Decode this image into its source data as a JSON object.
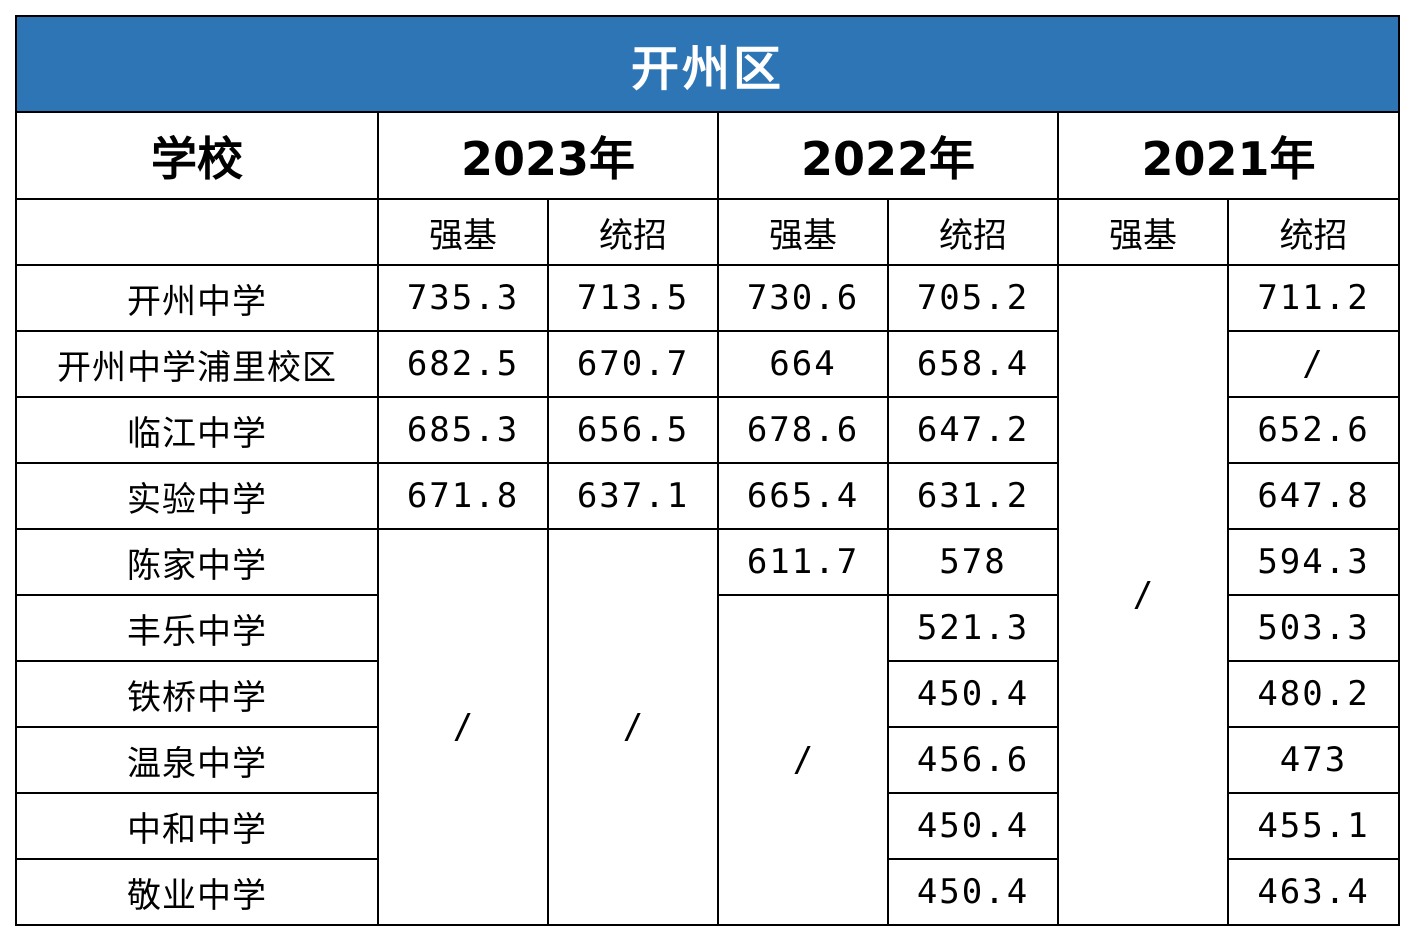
{
  "title": "开州区",
  "header": {
    "school_label": "学校",
    "years": [
      "2023年",
      "2022年",
      "2021年"
    ],
    "sub_labels": [
      "强基",
      "统招"
    ]
  },
  "rows": [
    {
      "school": "开州中学",
      "y2023_qj": "735.3",
      "y2023_tz": "713.5",
      "y2022_qj": "730.6",
      "y2022_tz": "705.2",
      "y2021_tz": "711.2"
    },
    {
      "school": "开州中学浦里校区",
      "y2023_qj": "682.5",
      "y2023_tz": "670.7",
      "y2022_qj": "664",
      "y2022_tz": "658.4",
      "y2021_tz": "/"
    },
    {
      "school": "临江中学",
      "y2023_qj": "685.3",
      "y2023_tz": "656.5",
      "y2022_qj": "678.6",
      "y2022_tz": "647.2",
      "y2021_tz": "652.6"
    },
    {
      "school": "实验中学",
      "y2023_qj": "671.8",
      "y2023_tz": "637.1",
      "y2022_qj": "665.4",
      "y2022_tz": "631.2",
      "y2021_tz": "647.8"
    },
    {
      "school": "陈家中学",
      "y2022_qj": "611.7",
      "y2022_tz": "578",
      "y2021_tz": "594.3"
    },
    {
      "school": "丰乐中学",
      "y2022_tz": "521.3",
      "y2021_tz": "503.3"
    },
    {
      "school": "铁桥中学",
      "y2022_tz": "450.4",
      "y2021_tz": "480.2"
    },
    {
      "school": "温泉中学",
      "y2022_tz": "456.6",
      "y2021_tz": "473"
    },
    {
      "school": "中和中学",
      "y2022_tz": "450.4",
      "y2021_tz": "455.1"
    },
    {
      "school": "敬业中学",
      "y2022_tz": "450.4",
      "y2021_tz": "463.4"
    }
  ],
  "merged": {
    "y2023_qj_missing": "/",
    "y2023_tz_missing": "/",
    "y2022_qj_missing": "/",
    "y2021_qj_all": "/"
  },
  "colors": {
    "title_bg": "#2e75b6",
    "title_text": "#ffffff",
    "border": "#000000"
  }
}
